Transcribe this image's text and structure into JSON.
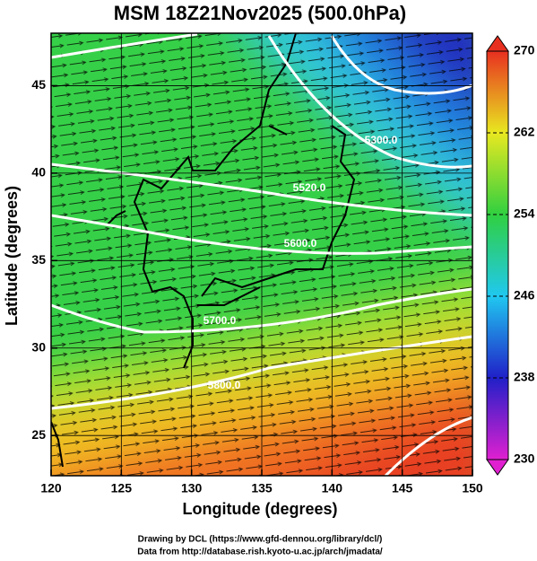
{
  "title": "MSM 18Z21Nov2025 (500.0hPa)",
  "x_label": "Longitude (degrees)",
  "y_label": "Latitude  (degrees)",
  "xlim": [
    120,
    150
  ],
  "xticks": [
    120,
    125,
    130,
    135,
    140,
    145,
    150
  ],
  "ylim": [
    22.7,
    48
  ],
  "yticks": [
    25,
    30,
    35,
    40,
    45
  ],
  "colorbar": {
    "lim": [
      230,
      270
    ],
    "ticks": [
      230,
      238,
      246,
      254,
      262,
      270
    ]
  },
  "contour_labels": [
    "5300.0",
    "5520.0",
    "5600.0",
    "5700.0",
    "5800.0"
  ],
  "credits": [
    "Drawing by DCL (https://www.gfd-dennou.org/library/dcl/)",
    "Data from http://database.rish.kyoto-u.ac.jp/arch/jmadata/"
  ]
}
